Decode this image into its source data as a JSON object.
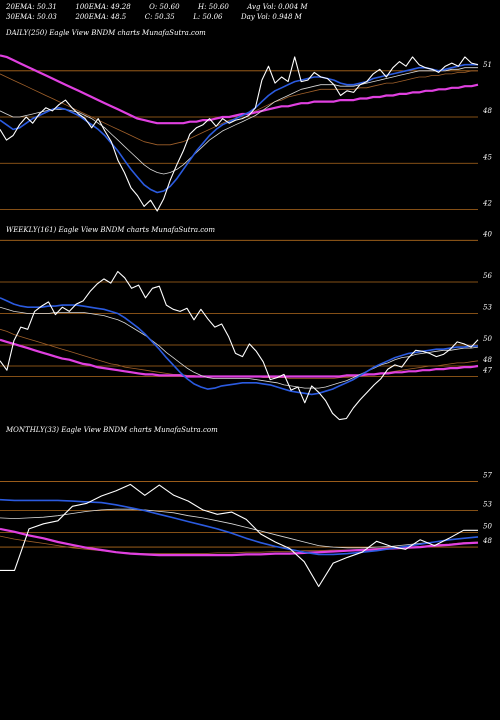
{
  "header": {
    "row1": [
      {
        "label": "20EMA",
        "value": "50.31"
      },
      {
        "label": "100EMA",
        "value": "49.28"
      },
      {
        "label": "O",
        "value": "50.60"
      },
      {
        "label": "H",
        "value": "50.60"
      },
      {
        "label": "Avg Vol",
        "value": "0.004 M"
      }
    ],
    "row2": [
      {
        "label": "30EMA",
        "value": "50.03"
      },
      {
        "label": "200EMA",
        "value": "48.5"
      },
      {
        "label": "C",
        "value": "50.35"
      },
      {
        "label": "L",
        "value": "50.06"
      },
      {
        "label": "Day Vol",
        "value": "0.948 M"
      }
    ]
  },
  "colors": {
    "background": "#000000",
    "price": "#ffffff",
    "ema_fast": "#2b5be0",
    "ema_slow": "#e040e0",
    "ema_brown": "#a0602a",
    "ema_white": "#d8d8d8",
    "level_line": "#b06a1e"
  },
  "chart_data": [
    {
      "type": "line",
      "title": "DAILY(250) Eagle  View  BNDM charts MunafaSutra.com",
      "levels": [
        51,
        48,
        45,
        42,
        40
      ],
      "yrange": [
        39.5,
        53
      ],
      "series": [
        {
          "role": "price",
          "values": [
            47.2,
            46.5,
            46.8,
            47.5,
            48,
            47.6,
            48.2,
            48.6,
            48.4,
            48.8,
            49.1,
            48.6,
            48.2,
            47.9,
            47.3,
            47.9,
            47.1,
            46.4,
            45.2,
            44.4,
            43.4,
            42.9,
            42.2,
            42.6,
            41.9,
            42.7,
            43.9,
            44.9,
            45.8,
            46.9,
            47.3,
            47.5,
            47.9,
            47.4,
            47.9,
            47.6,
            47.8,
            47.9,
            48.1,
            48.6,
            50.4,
            51.3,
            50.2,
            50.6,
            50.3,
            51.9,
            50.3,
            50.4,
            50.9,
            50.6,
            50.5,
            50.1,
            49.4,
            49.7,
            49.6,
            50.1,
            50.3,
            50.8,
            51.1,
            50.6,
            51.2,
            51.6,
            51.3,
            51.9,
            51.4,
            51.2,
            51.1,
            50.9,
            51.3,
            51.5,
            51.3,
            51.9,
            51.5,
            51.4
          ]
        },
        {
          "role": "ema_fast",
          "values": [
            47.8,
            47.5,
            47.2,
            47.3,
            47.6,
            47.9,
            48.1,
            48.3,
            48.5,
            48.6,
            48.5,
            48.3,
            48.1,
            47.8,
            47.5,
            47.2,
            46.8,
            46.3,
            45.8,
            45.2,
            44.6,
            44.1,
            43.6,
            43.3,
            43.1,
            43.2,
            43.5,
            44,
            44.6,
            45.2,
            45.8,
            46.3,
            46.8,
            47.2,
            47.5,
            47.7,
            47.9,
            48.1,
            48.3,
            48.6,
            49,
            49.4,
            49.7,
            49.9,
            50.1,
            50.3,
            50.4,
            50.5,
            50.6,
            50.6,
            50.5,
            50.4,
            50.2,
            50.1,
            50.1,
            50.2,
            50.3,
            50.5,
            50.6,
            50.7,
            50.8,
            50.9,
            51,
            51.1,
            51.2,
            51.2,
            51.1,
            51,
            51.1,
            51.2,
            51.3,
            51.4,
            51.4,
            51.4
          ]
        },
        {
          "role": "ema_white",
          "values": [
            48.4,
            48.2,
            48,
            48,
            48.1,
            48.2,
            48.3,
            48.4,
            48.5,
            48.5,
            48.5,
            48.4,
            48.3,
            48.1,
            47.9,
            47.6,
            47.3,
            46.9,
            46.5,
            46.1,
            45.7,
            45.3,
            44.9,
            44.6,
            44.4,
            44.3,
            44.4,
            44.6,
            44.9,
            45.3,
            45.7,
            46.1,
            46.5,
            46.8,
            47.1,
            47.3,
            47.5,
            47.7,
            47.9,
            48.1,
            48.4,
            48.7,
            49,
            49.2,
            49.4,
            49.6,
            49.8,
            49.9,
            50,
            50.1,
            50.1,
            50.1,
            50,
            50,
            50,
            50.1,
            50.2,
            50.3,
            50.4,
            50.5,
            50.6,
            50.7,
            50.8,
            50.9,
            51,
            51,
            51,
            51,
            51,
            51.1,
            51.1,
            51.2,
            51.2,
            51.2
          ]
        },
        {
          "role": "ema_brown",
          "values": [
            50.8,
            50.6,
            50.4,
            50.2,
            50,
            49.8,
            49.6,
            49.4,
            49.2,
            49,
            48.8,
            48.6,
            48.4,
            48.2,
            48,
            47.8,
            47.6,
            47.4,
            47.2,
            47,
            46.8,
            46.6,
            46.4,
            46.3,
            46.2,
            46.2,
            46.2,
            46.3,
            46.4,
            46.6,
            46.8,
            47,
            47.2,
            47.4,
            47.6,
            47.8,
            47.9,
            48.1,
            48.2,
            48.4,
            48.6,
            48.8,
            49,
            49.1,
            49.3,
            49.4,
            49.5,
            49.6,
            49.7,
            49.8,
            49.8,
            49.8,
            49.8,
            49.8,
            49.8,
            49.9,
            49.9,
            50,
            50.1,
            50.2,
            50.2,
            50.3,
            50.4,
            50.5,
            50.6,
            50.6,
            50.7,
            50.7,
            50.8,
            50.8,
            50.9,
            50.9,
            51,
            51
          ]
        },
        {
          "role": "ema_slow",
          "values": [
            52,
            51.9,
            51.7,
            51.5,
            51.3,
            51.1,
            50.9,
            50.7,
            50.5,
            50.3,
            50.1,
            49.9,
            49.7,
            49.5,
            49.3,
            49.1,
            48.9,
            48.7,
            48.5,
            48.3,
            48.1,
            47.9,
            47.8,
            47.7,
            47.6,
            47.6,
            47.6,
            47.6,
            47.6,
            47.7,
            47.7,
            47.8,
            47.8,
            47.9,
            48,
            48,
            48.1,
            48.2,
            48.2,
            48.3,
            48.4,
            48.5,
            48.6,
            48.7,
            48.7,
            48.8,
            48.9,
            48.9,
            49,
            49,
            49,
            49,
            49.1,
            49.1,
            49.1,
            49.2,
            49.2,
            49.3,
            49.3,
            49.4,
            49.4,
            49.5,
            49.5,
            49.6,
            49.6,
            49.7,
            49.7,
            49.8,
            49.8,
            49.9,
            49.9,
            50,
            50,
            50.1
          ]
        }
      ]
    },
    {
      "type": "line",
      "title": "WEEKLY(161) Eagle  View  BNDM charts MunafaSutra.com",
      "levels": [
        56,
        53,
        50,
        48,
        47
      ],
      "yrange": [
        40,
        60
      ],
      "series": [
        {
          "role": "price",
          "values": [
            48.5,
            47.6,
            50.4,
            51.7,
            51.5,
            53.2,
            53.7,
            54.1,
            52.9,
            53.6,
            53.2,
            53.9,
            54.2,
            55.1,
            55.8,
            56.3,
            55.9,
            57,
            56.4,
            55.4,
            55.7,
            54.5,
            55.4,
            55.6,
            53.8,
            53.4,
            53.2,
            53.5,
            52.4,
            53.4,
            52.5,
            51.7,
            52,
            50.8,
            49.2,
            48.9,
            50.1,
            49.4,
            48.4,
            46.7,
            46.9,
            47.2,
            45.7,
            46,
            44.5,
            46.1,
            45.5,
            44.7,
            43.5,
            42.9,
            43,
            44,
            44.8,
            45.5,
            46.2,
            46.8,
            47.7,
            48.1,
            47.9,
            48.8,
            49.5,
            49.4,
            49.2,
            48.9,
            49.1,
            49.6,
            50.3,
            50.1,
            49.8,
            50.5
          ]
        },
        {
          "role": "ema_fast",
          "values": [
            54.5,
            54.2,
            53.9,
            53.7,
            53.6,
            53.6,
            53.6,
            53.7,
            53.7,
            53.8,
            53.8,
            53.8,
            53.7,
            53.6,
            53.5,
            53.4,
            53.2,
            53,
            52.6,
            52.1,
            51.6,
            51,
            50.3,
            49.6,
            48.8,
            48.1,
            47.4,
            46.8,
            46.3,
            46,
            45.8,
            45.9,
            46.1,
            46.2,
            46.3,
            46.4,
            46.4,
            46.4,
            46.3,
            46.2,
            46,
            45.8,
            45.6,
            45.5,
            45.4,
            45.3,
            45.4,
            45.6,
            45.8,
            46.1,
            46.4,
            46.7,
            47.1,
            47.5,
            47.9,
            48.2,
            48.5,
            48.8,
            49,
            49.2,
            49.3,
            49.4,
            49.5,
            49.6,
            49.6,
            49.7,
            49.8,
            49.8,
            49.9,
            49.9
          ]
        },
        {
          "role": "ema_white",
          "values": [
            53.6,
            53.4,
            53.2,
            53.1,
            53,
            53,
            53,
            53,
            53.1,
            53.1,
            53.1,
            53.1,
            53.1,
            53,
            52.9,
            52.8,
            52.6,
            52.4,
            52.1,
            51.7,
            51.3,
            50.9,
            50.4,
            49.9,
            49.3,
            48.8,
            48.3,
            47.8,
            47.4,
            47.1,
            46.9,
            46.8,
            46.8,
            46.8,
            46.8,
            46.8,
            46.8,
            46.7,
            46.6,
            46.5,
            46.4,
            46.2,
            46.1,
            46,
            45.9,
            45.9,
            45.9,
            46,
            46.2,
            46.4,
            46.6,
            46.9,
            47.2,
            47.5,
            47.8,
            48.1,
            48.3,
            48.6,
            48.8,
            48.9,
            49.1,
            49.2,
            49.3,
            49.4,
            49.5,
            49.5,
            49.6,
            49.7,
            49.7,
            49.8
          ]
        },
        {
          "role": "ema_brown",
          "values": [
            51.5,
            51.3,
            51,
            50.8,
            50.6,
            50.4,
            50.2,
            50,
            49.8,
            49.6,
            49.4,
            49.2,
            49,
            48.8,
            48.6,
            48.4,
            48.2,
            48.1,
            47.9,
            47.8,
            47.7,
            47.6,
            47.5,
            47.4,
            47.3,
            47.2,
            47.2,
            47.1,
            47.1,
            47,
            47,
            47,
            47,
            47,
            47,
            47,
            47,
            47,
            46.9,
            46.9,
            46.9,
            46.9,
            46.8,
            46.8,
            46.8,
            46.8,
            46.8,
            46.8,
            46.8,
            46.9,
            46.9,
            47,
            47.1,
            47.1,
            47.2,
            47.3,
            47.4,
            47.5,
            47.6,
            47.7,
            47.8,
            47.9,
            48,
            48,
            48.1,
            48.2,
            48.3,
            48.3,
            48.4,
            48.5
          ]
        },
        {
          "role": "ema_slow",
          "values": [
            50.5,
            50.3,
            50.1,
            49.9,
            49.7,
            49.5,
            49.3,
            49.1,
            48.9,
            48.7,
            48.6,
            48.4,
            48.2,
            48.1,
            47.9,
            47.8,
            47.7,
            47.6,
            47.5,
            47.4,
            47.3,
            47.2,
            47.2,
            47.1,
            47.1,
            47.1,
            47.1,
            47,
            47,
            47,
            47,
            47,
            47,
            47,
            47,
            47,
            47,
            47,
            47,
            47,
            47,
            47,
            47,
            47,
            47,
            47,
            47,
            47,
            47,
            47,
            47.1,
            47.1,
            47.1,
            47.2,
            47.2,
            47.3,
            47.3,
            47.4,
            47.4,
            47.5,
            47.5,
            47.6,
            47.6,
            47.7,
            47.7,
            47.8,
            47.8,
            47.9,
            47.9,
            48
          ]
        }
      ]
    },
    {
      "type": "line",
      "title": "MONTHLY(33) Eagle  View  BNDM charts MunafaSutra.com",
      "levels": [
        57,
        53,
        50,
        48
      ],
      "yrange": [
        38,
        62
      ],
      "series": [
        {
          "role": "price",
          "values": [
            44.8,
            44.8,
            50.5,
            51.2,
            51.6,
            53.6,
            54,
            55,
            55.7,
            56.6,
            55.1,
            56.5,
            55.1,
            54.3,
            53.1,
            52.5,
            52.8,
            51.8,
            49.8,
            48.7,
            47.8,
            46,
            42.6,
            45.8,
            46.6,
            47.3,
            48.8,
            48.1,
            47.7,
            49,
            48.2,
            49.2,
            50.3,
            50.3
          ]
        },
        {
          "role": "ema_fast",
          "values": [
            54.5,
            54.4,
            54.4,
            54.4,
            54.4,
            54.3,
            54.2,
            54.1,
            53.8,
            53.4,
            53,
            52.5,
            52,
            51.5,
            51,
            50.5,
            49.9,
            49.2,
            48.6,
            48.1,
            47.7,
            47.3,
            47,
            47,
            47.1,
            47.3,
            47.5,
            47.8,
            48.1,
            48.4,
            48.7,
            49,
            49.2,
            49.4
          ]
        },
        {
          "role": "ema_white",
          "values": [
            52,
            51.9,
            52,
            52.1,
            52.3,
            52.6,
            52.9,
            53.1,
            53.2,
            53.2,
            53.1,
            52.9,
            52.7,
            52.3,
            52,
            51.6,
            51.2,
            50.7,
            50.2,
            49.7,
            49.2,
            48.7,
            48.2,
            48,
            47.9,
            47.9,
            48,
            48.1,
            48.3,
            48.5,
            48.7,
            49,
            49.2,
            49.4
          ]
        },
        {
          "role": "ema_brown",
          "values": [
            49.5,
            49.1,
            48.8,
            48.5,
            48.2,
            47.9,
            47.7,
            47.5,
            47.3,
            47.2,
            47.1,
            47.1,
            47.1,
            47.1,
            47.1,
            47.2,
            47.2,
            47.3,
            47.3,
            47.4,
            47.4,
            47.5,
            47.5,
            47.6,
            47.6,
            47.7,
            47.8,
            47.9,
            48,
            48.1,
            48.3,
            48.4,
            48.6,
            48.7
          ]
        },
        {
          "role": "ema_slow",
          "values": [
            50.5,
            50.1,
            49.6,
            49.2,
            48.7,
            48.3,
            47.9,
            47.6,
            47.3,
            47.1,
            47,
            46.9,
            46.9,
            46.9,
            46.9,
            46.9,
            46.9,
            47,
            47,
            47.1,
            47.1,
            47.2,
            47.3,
            47.4,
            47.5,
            47.6,
            47.7,
            47.8,
            47.9,
            48,
            48.2,
            48.3,
            48.5,
            48.6
          ]
        }
      ]
    }
  ]
}
